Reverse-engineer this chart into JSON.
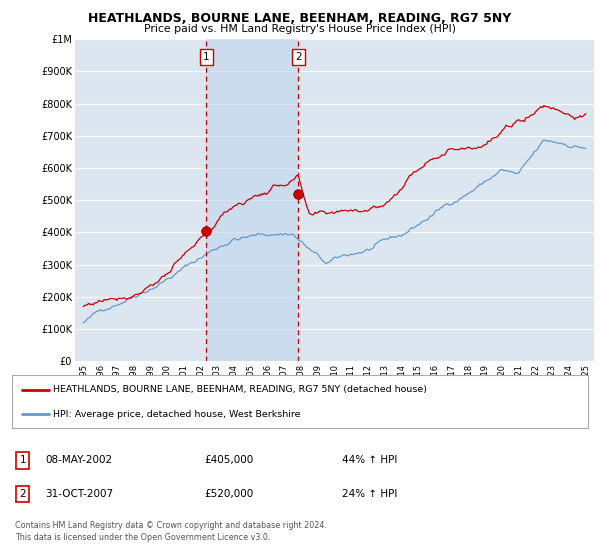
{
  "title": "HEATHLANDS, BOURNE LANE, BEENHAM, READING, RG7 5NY",
  "subtitle": "Price paid vs. HM Land Registry's House Price Index (HPI)",
  "background_color": "#ffffff",
  "plot_bg_color": "#dce6f1",
  "shade_color": "#c5d8ee",
  "grid_color": "#ffffff",
  "ylim": [
    0,
    1000000
  ],
  "yticks": [
    0,
    100000,
    200000,
    300000,
    400000,
    500000,
    600000,
    700000,
    800000,
    900000,
    1000000
  ],
  "ytick_labels": [
    "£0",
    "£100K",
    "£200K",
    "£300K",
    "£400K",
    "£500K",
    "£600K",
    "£700K",
    "£800K",
    "£900K",
    "£1M"
  ],
  "sale1_x": 2002.35,
  "sale1_y": 405000,
  "sale2_x": 2007.83,
  "sale2_y": 520000,
  "legend_line1": "HEATHLANDS, BOURNE LANE, BEENHAM, READING, RG7 5NY (detached house)",
  "legend_line2": "HPI: Average price, detached house, West Berkshire",
  "table_entries": [
    {
      "label": "1",
      "date": "08-MAY-2002",
      "price": "£405,000",
      "change": "44% ↑ HPI"
    },
    {
      "label": "2",
      "date": "31-OCT-2007",
      "price": "£520,000",
      "change": "24% ↑ HPI"
    }
  ],
  "footer": "Contains HM Land Registry data © Crown copyright and database right 2024.\nThis data is licensed under the Open Government Licence v3.0.",
  "hpi_color": "#6699cc",
  "price_color": "#cc0000",
  "vline_color": "#cc0000",
  "xlim_left": 1994.5,
  "xlim_right": 2025.5,
  "xtick_start": 1995,
  "xtick_end": 2025
}
